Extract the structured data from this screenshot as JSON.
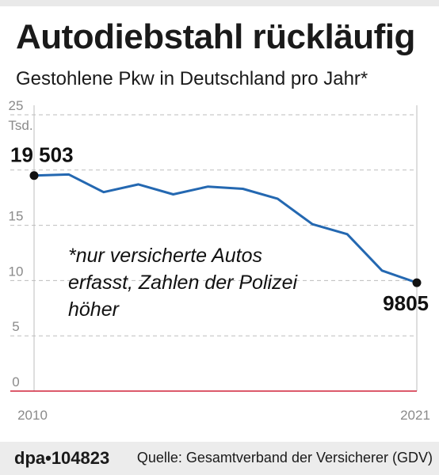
{
  "header": {
    "title": "Autodiebstahl rückläufig",
    "subtitle": "Gestohlene Pkw in Deutschland pro Jahr*"
  },
  "footnote": "*nur versicherte Autos erfasst, Zahlen der Polizei höher",
  "footer": {
    "agency": "dpa•104823",
    "source": "Quelle: Gesamtverband der Versicherer (GDV)"
  },
  "colors": {
    "line": "#2468b1",
    "grid": "#bdbdbd",
    "zero_line": "#d0243a",
    "text_gray": "#8a8a8a"
  },
  "chart_data": {
    "type": "line",
    "title": "Autodiebstahl rückläufig",
    "subtitle": "Gestohlene Pkw in Deutschland pro Jahr*",
    "y_unit_label": "Tsd.",
    "ylim": [
      0,
      25
    ],
    "y_ticks": [
      0,
      5,
      10,
      15,
      25
    ],
    "x_tick_labels": [
      "2010",
      "2021"
    ],
    "grid": true,
    "x": [
      2010,
      2011,
      2012,
      2013,
      2014,
      2015,
      2016,
      2017,
      2018,
      2019,
      2020,
      2021
    ],
    "series": [
      {
        "values": [
          19.503,
          19.6,
          18.0,
          18.7,
          17.8,
          18.5,
          18.3,
          17.4,
          15.1,
          14.2,
          10.9,
          9.805
        ]
      }
    ],
    "annotations": [
      {
        "x": 2010,
        "y": 19.503,
        "text": "19 503"
      },
      {
        "x": 2021,
        "y": 9.805,
        "text": "9805"
      }
    ]
  }
}
